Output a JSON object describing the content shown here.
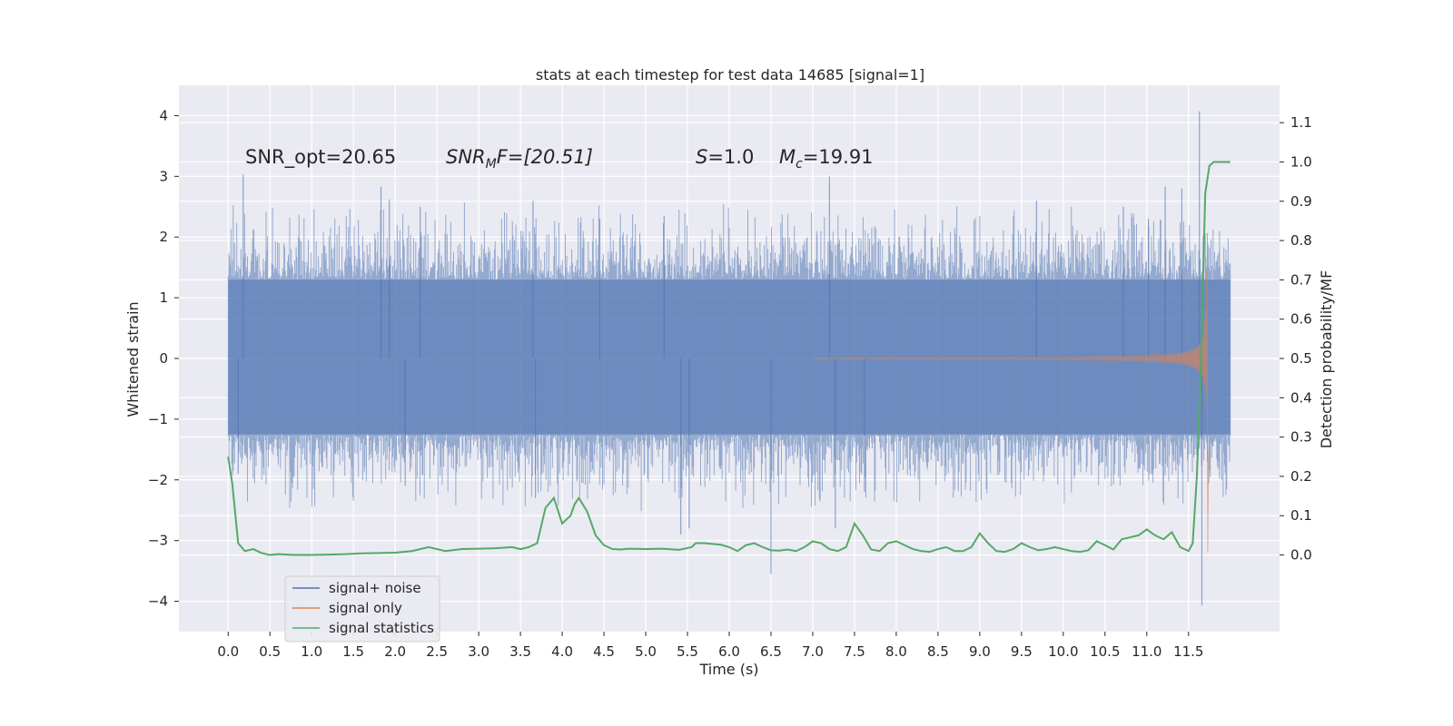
{
  "chart_data": {
    "type": "line",
    "title": "stats at each timestep for test data 14685 [signal=1]",
    "xlabel": "Time (s)",
    "ylabel_left": "Whitened strain",
    "ylabel_right": "Detection probability/MF",
    "xlim": [
      -0.59,
      12.59
    ],
    "ylim_left": [
      -4.5,
      4.5
    ],
    "ylim_right": [
      -0.195,
      1.195
    ],
    "x_ticks": [
      "0.0",
      "0.5",
      "1.0",
      "1.5",
      "2.0",
      "2.5",
      "3.0",
      "3.5",
      "4.0",
      "4.5",
      "5.0",
      "5.5",
      "6.0",
      "6.5",
      "7.0",
      "7.5",
      "8.0",
      "8.5",
      "9.0",
      "9.5",
      "10.0",
      "10.5",
      "11.0",
      "11.5"
    ],
    "y_ticks_left": [
      "−4",
      "−3",
      "−2",
      "−1",
      "0",
      "1",
      "2",
      "3",
      "4"
    ],
    "y_ticks_right": [
      "0.0",
      "0.1",
      "0.2",
      "0.3",
      "0.4",
      "0.5",
      "0.6",
      "0.7",
      "0.8",
      "0.9",
      "1.0",
      "1.1"
    ],
    "grid": true,
    "background": "#eaeaf2",
    "legend_position": "lower-left",
    "annotations": {
      "snr_opt": "SNR_opt=20.65",
      "snr_mf_main": "SNR",
      "snr_mf_sub": "M",
      "snr_mf_rest": "F=[20.51]",
      "s_main": "S",
      "s_rest": "=1.0",
      "mc_main": "M",
      "mc_sub": "c",
      "mc_rest": "=19.91"
    },
    "series": [
      {
        "name": "signal+ noise",
        "axis": "left",
        "color": "#4c72b0",
        "kind": "strain",
        "t_start": 0.0,
        "t_end": 12.0,
        "envelope_band": [
          -1.25,
          1.3
        ],
        "spikes": [
          [
            0.18,
            3.03
          ],
          [
            0.12,
            -1.9
          ],
          [
            1.83,
            2.83
          ],
          [
            1.93,
            2.62
          ],
          [
            2.3,
            2.5
          ],
          [
            2.12,
            -2.1
          ],
          [
            3.65,
            2.6
          ],
          [
            3.68,
            -2.3
          ],
          [
            4.45,
            2.3
          ],
          [
            5.22,
            2.35
          ],
          [
            5.42,
            -2.9
          ],
          [
            5.52,
            -2.8
          ],
          [
            6.5,
            -3.55
          ],
          [
            7.2,
            3.0
          ],
          [
            7.27,
            -2.8
          ],
          [
            7.62,
            -2.2
          ],
          [
            9.68,
            2.6
          ],
          [
            10.72,
            2.5
          ],
          [
            11.02,
            2.3
          ],
          [
            11.22,
            2.83
          ],
          [
            11.42,
            2.8
          ],
          [
            11.63,
            4.07
          ],
          [
            11.66,
            -4.07
          ]
        ]
      },
      {
        "name": "signal only",
        "axis": "left",
        "color": "#dd8452",
        "kind": "chirp",
        "t_merger": 11.72,
        "peak_amplitude": 3.0
      },
      {
        "name": "signal statistics",
        "axis": "right",
        "color": "#55a868",
        "kind": "line",
        "x": [
          0.0,
          0.05,
          0.12,
          0.2,
          0.3,
          0.4,
          0.5,
          0.6,
          0.8,
          1.0,
          1.2,
          1.4,
          1.6,
          1.8,
          2.0,
          2.2,
          2.4,
          2.5,
          2.6,
          2.8,
          3.0,
          3.2,
          3.4,
          3.5,
          3.6,
          3.7,
          3.8,
          3.9,
          4.0,
          4.1,
          4.15,
          4.2,
          4.3,
          4.4,
          4.5,
          4.6,
          4.7,
          4.8,
          5.0,
          5.2,
          5.4,
          5.55,
          5.6,
          5.7,
          5.8,
          5.9,
          6.0,
          6.1,
          6.2,
          6.3,
          6.4,
          6.5,
          6.6,
          6.7,
          6.8,
          6.9,
          7.0,
          7.1,
          7.2,
          7.3,
          7.4,
          7.5,
          7.6,
          7.7,
          7.8,
          7.9,
          8.0,
          8.1,
          8.2,
          8.3,
          8.4,
          8.5,
          8.6,
          8.7,
          8.8,
          8.9,
          9.0,
          9.1,
          9.2,
          9.3,
          9.4,
          9.5,
          9.6,
          9.7,
          9.8,
          9.9,
          10.0,
          10.1,
          10.2,
          10.3,
          10.4,
          10.5,
          10.6,
          10.7,
          10.8,
          10.9,
          11.0,
          11.1,
          11.2,
          11.3,
          11.4,
          11.5,
          11.55,
          11.6,
          11.65,
          11.7,
          11.75,
          11.8,
          11.9,
          12.0
        ],
        "y": [
          0.25,
          0.18,
          0.03,
          0.01,
          0.015,
          0.005,
          0.0,
          0.002,
          0.0,
          0.0,
          0.001,
          0.002,
          0.004,
          0.005,
          0.006,
          0.01,
          0.02,
          0.015,
          0.01,
          0.015,
          0.016,
          0.017,
          0.02,
          0.015,
          0.02,
          0.03,
          0.12,
          0.145,
          0.08,
          0.1,
          0.13,
          0.145,
          0.11,
          0.05,
          0.025,
          0.015,
          0.014,
          0.016,
          0.015,
          0.016,
          0.013,
          0.02,
          0.03,
          0.03,
          0.028,
          0.026,
          0.02,
          0.01,
          0.025,
          0.03,
          0.02,
          0.012,
          0.011,
          0.014,
          0.01,
          0.02,
          0.035,
          0.03,
          0.015,
          0.01,
          0.02,
          0.08,
          0.05,
          0.014,
          0.01,
          0.03,
          0.035,
          0.025,
          0.015,
          0.01,
          0.008,
          0.015,
          0.02,
          0.01,
          0.01,
          0.02,
          0.055,
          0.03,
          0.01,
          0.008,
          0.015,
          0.03,
          0.02,
          0.012,
          0.015,
          0.02,
          0.015,
          0.01,
          0.008,
          0.012,
          0.035,
          0.025,
          0.014,
          0.04,
          0.045,
          0.05,
          0.065,
          0.05,
          0.04,
          0.058,
          0.02,
          0.01,
          0.03,
          0.2,
          0.5,
          0.92,
          0.99,
          1.0,
          1.0,
          1.0
        ]
      }
    ]
  }
}
